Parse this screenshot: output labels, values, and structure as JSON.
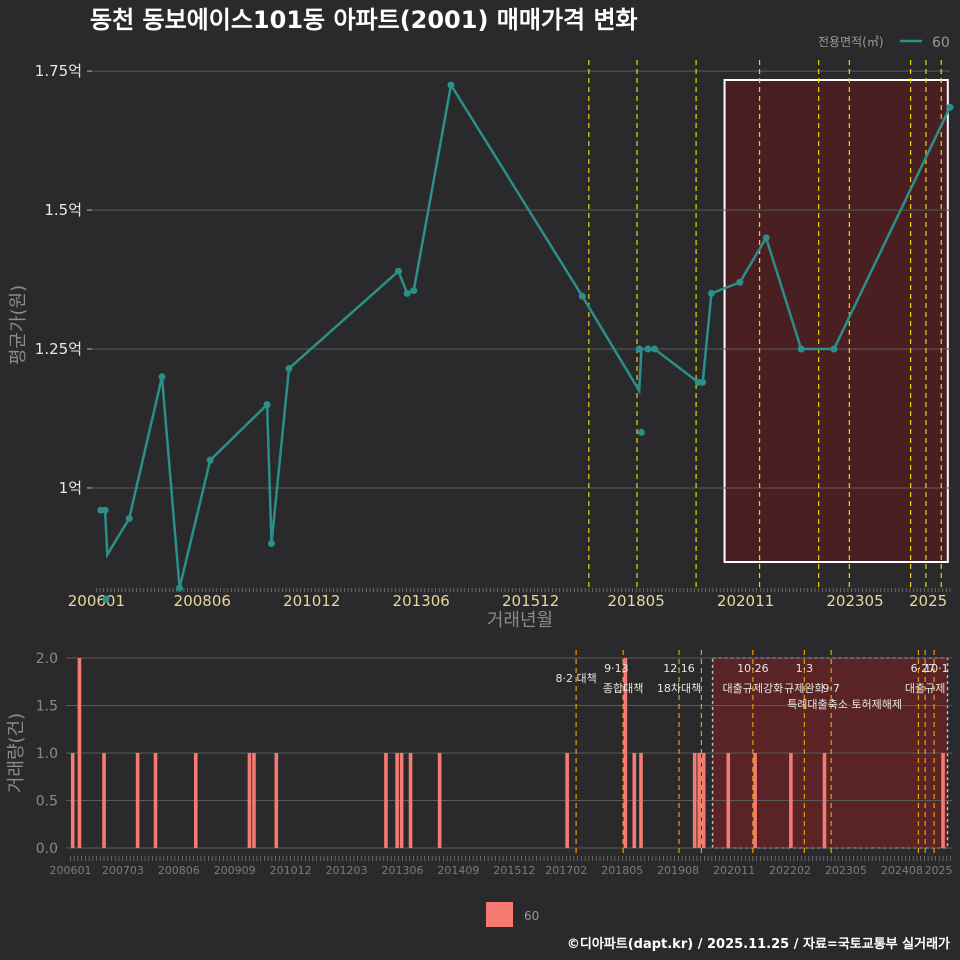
{
  "title": "동천 동보에이스101동 아파트(2001) 매매가격 변화",
  "footer": "©디아파트(dapt.kr) / 2025.11.25 / 자료=국토교통부 실거래가",
  "colors": {
    "background": "#2a2a2c",
    "line": "#2b8f8a",
    "bar": "#f47a72",
    "event_line": "#e8d800",
    "event_line2": "#e8a000",
    "highlight_fill": "#4a1f22",
    "grid": "#5a5a5a"
  },
  "chart_data": [
    {
      "type": "line",
      "name": "price",
      "ylabel": "평균가(원)",
      "xlabel": "거래년월",
      "ylim": [
        0.82,
        1.77
      ],
      "y_ticks": [
        {
          "v": 1.0,
          "label": "1억"
        },
        {
          "v": 1.25,
          "label": "1.25억"
        },
        {
          "v": 1.5,
          "label": "1.5억"
        },
        {
          "v": 1.75,
          "label": "1.75억"
        }
      ],
      "x_ticks": [
        "200601",
        "200806",
        "201012",
        "201306",
        "201512",
        "201805",
        "202011",
        "202305",
        "2025"
      ],
      "x_tick_values": [
        2006.0,
        2008.42,
        2010.92,
        2013.42,
        2015.92,
        2018.33,
        2020.83,
        2023.33,
        2025.0
      ],
      "xlim": [
        2005.9,
        2025.5
      ],
      "legend_title": "전용면적(㎡)",
      "legend_label": "60",
      "series": [
        {
          "name": "60",
          "line": [
            [
              2006.1,
              0.96
            ],
            [
              2006.2,
              0.96
            ],
            [
              2006.25,
              0.88
            ],
            [
              2006.75,
              0.945
            ],
            [
              2007.5,
              1.2
            ],
            [
              2007.9,
              0.82
            ],
            [
              2008.6,
              1.05
            ],
            [
              2009.9,
              1.15
            ],
            [
              2010.0,
              0.9
            ],
            [
              2010.4,
              1.215
            ],
            [
              2012.9,
              1.39
            ],
            [
              2013.1,
              1.35
            ],
            [
              2013.25,
              1.355
            ],
            [
              2014.1,
              1.725
            ],
            [
              2017.1,
              1.345
            ],
            [
              2018.4,
              1.175
            ],
            [
              2018.45,
              1.25
            ],
            [
              2018.6,
              1.25
            ],
            [
              2018.75,
              1.25
            ],
            [
              2019.75,
              1.19
            ],
            [
              2019.85,
              1.19
            ],
            [
              2020.05,
              1.35
            ],
            [
              2020.7,
              1.37
            ],
            [
              2021.3,
              1.45
            ],
            [
              2022.1,
              1.25
            ],
            [
              2022.85,
              1.25
            ],
            [
              2025.5,
              1.685
            ]
          ],
          "points": [
            [
              2006.1,
              0.96
            ],
            [
              2006.2,
              0.96
            ],
            [
              2006.22,
              0.8
            ],
            [
              2006.75,
              0.945
            ],
            [
              2007.5,
              1.2
            ],
            [
              2007.9,
              0.82
            ],
            [
              2008.6,
              1.05
            ],
            [
              2009.9,
              1.15
            ],
            [
              2010.0,
              0.9
            ],
            [
              2010.4,
              1.215
            ],
            [
              2012.9,
              1.39
            ],
            [
              2013.1,
              1.35
            ],
            [
              2013.25,
              1.355
            ],
            [
              2014.1,
              1.725
            ],
            [
              2017.1,
              1.345
            ],
            [
              2018.4,
              1.25
            ],
            [
              2018.45,
              1.1
            ],
            [
              2018.6,
              1.25
            ],
            [
              2018.75,
              1.25
            ],
            [
              2019.75,
              1.19
            ],
            [
              2019.85,
              1.19
            ],
            [
              2020.05,
              1.35
            ],
            [
              2020.7,
              1.37
            ],
            [
              2021.3,
              1.45
            ],
            [
              2022.1,
              1.25
            ],
            [
              2022.85,
              1.25
            ],
            [
              2025.5,
              1.685
            ]
          ]
        }
      ],
      "highlight_range": [
        2020.35,
        2025.45
      ],
      "event_lines": [
        2017.25,
        2018.35,
        2019.7,
        2021.15,
        2022.5,
        2023.2,
        2024.6,
        2024.95,
        2025.3
      ]
    },
    {
      "type": "bar",
      "name": "volume",
      "ylabel": "거래량(건)",
      "ylim": [
        0,
        2.0
      ],
      "y_ticks": [
        {
          "v": 0.0,
          "label": "0.0"
        },
        {
          "v": 0.5,
          "label": "0.5"
        },
        {
          "v": 1.0,
          "label": "1.0"
        },
        {
          "v": 1.5,
          "label": "1.5"
        },
        {
          "v": 2.0,
          "label": "2.0"
        }
      ],
      "x_ticks": [
        "200601",
        "200703",
        "200806",
        "200909",
        "201012",
        "201203",
        "201306",
        "201409",
        "201512",
        "201702",
        "201805",
        "201908",
        "202011",
        "202202",
        "202305",
        "202408",
        "2025"
      ],
      "x_tick_values": [
        2006.0,
        2007.17,
        2008.42,
        2009.67,
        2010.92,
        2012.17,
        2013.42,
        2014.67,
        2015.92,
        2017.08,
        2018.33,
        2019.58,
        2020.83,
        2022.08,
        2023.33,
        2024.58,
        2025.4
      ],
      "xlim": [
        2005.9,
        2025.7
      ],
      "legend_label": "60",
      "bars": [
        [
          2006.05,
          1
        ],
        [
          2006.2,
          2
        ],
        [
          2006.75,
          1
        ],
        [
          2007.5,
          1
        ],
        [
          2007.9,
          1
        ],
        [
          2008.8,
          1
        ],
        [
          2010.0,
          1
        ],
        [
          2010.1,
          1
        ],
        [
          2010.6,
          1
        ],
        [
          2013.05,
          1
        ],
        [
          2013.3,
          1
        ],
        [
          2013.4,
          1
        ],
        [
          2013.6,
          1
        ],
        [
          2014.25,
          1
        ],
        [
          2017.1,
          1
        ],
        [
          2018.4,
          2
        ],
        [
          2018.6,
          1
        ],
        [
          2018.75,
          1
        ],
        [
          2019.95,
          1
        ],
        [
          2020.05,
          1
        ],
        [
          2020.15,
          1
        ],
        [
          2020.7,
          1
        ],
        [
          2021.3,
          1
        ],
        [
          2022.1,
          1
        ],
        [
          2022.85,
          1
        ],
        [
          2025.5,
          1
        ]
      ],
      "highlight_range": [
        2020.35,
        2025.6
      ],
      "event_lines": [
        2017.3,
        2018.35,
        2019.6,
        2020.1,
        2021.25,
        2022.4,
        2023.0,
        2024.95,
        2025.1,
        2025.3
      ],
      "annotations": [
        {
          "x": 2017.3,
          "row": 1,
          "text": "8·2 대책"
        },
        {
          "x": 2018.2,
          "row": 0,
          "text": "9·13"
        },
        {
          "x": 2018.35,
          "row": 2,
          "text": "종합대책"
        },
        {
          "x": 2019.6,
          "row": 0,
          "text": "12·16"
        },
        {
          "x": 2019.6,
          "row": 2,
          "text": "18차대책"
        },
        {
          "x": 2021.25,
          "row": 0,
          "text": "10·26"
        },
        {
          "x": 2021.25,
          "row": 2,
          "text": "대출규제강화"
        },
        {
          "x": 2022.4,
          "row": 0,
          "text": "1·3"
        },
        {
          "x": 2022.4,
          "row": 2,
          "text": "규제완화"
        },
        {
          "x": 2023.0,
          "row": 2,
          "text": "9·7"
        },
        {
          "x": 2023.3,
          "row": 3,
          "text": "특례대출축소 토허제해제"
        },
        {
          "x": 2025.05,
          "row": 0,
          "text": "6·27"
        },
        {
          "x": 2025.35,
          "row": 0,
          "text": "10·1"
        },
        {
          "x": 2025.1,
          "row": 2,
          "text": "대출규제"
        }
      ]
    }
  ]
}
